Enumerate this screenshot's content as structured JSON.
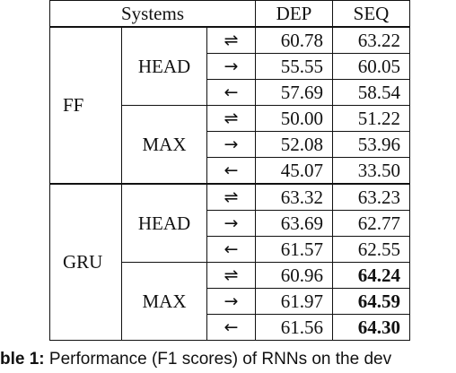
{
  "table": {
    "headers": {
      "systems": "Systems",
      "dep": "DEP",
      "seq": "SEQ"
    },
    "groups": [
      {
        "model": "FF",
        "subgroups": [
          {
            "pooling": "HEAD",
            "rows": [
              {
                "direction": "⇌",
                "dep": "60.78",
                "seq": "63.22"
              },
              {
                "direction": "→",
                "dep": "55.55",
                "seq": "60.05"
              },
              {
                "direction": "←",
                "dep": "57.69",
                "seq": "58.54"
              }
            ]
          },
          {
            "pooling": "MAX",
            "rows": [
              {
                "direction": "⇌",
                "dep": "50.00",
                "seq": "51.22"
              },
              {
                "direction": "→",
                "dep": "52.08",
                "seq": "53.96"
              },
              {
                "direction": "←",
                "dep": "45.07",
                "seq": "33.50"
              }
            ]
          }
        ]
      },
      {
        "model": "GRU",
        "subgroups": [
          {
            "pooling": "HEAD",
            "rows": [
              {
                "direction": "⇌",
                "dep": "63.32",
                "seq": "63.23"
              },
              {
                "direction": "→",
                "dep": "63.69",
                "seq": "62.77"
              },
              {
                "direction": "←",
                "dep": "61.57",
                "seq": "62.55"
              }
            ]
          },
          {
            "pooling": "MAX",
            "rows": [
              {
                "direction": "⇌",
                "dep": "60.96",
                "seq": "64.24",
                "seq_bold": true
              },
              {
                "direction": "→",
                "dep": "61.97",
                "seq": "64.59",
                "seq_bold": true
              },
              {
                "direction": "←",
                "dep": "61.56",
                "seq": "64.30",
                "seq_bold": true
              }
            ]
          }
        ]
      }
    ]
  },
  "caption": {
    "label": "ble 1:",
    "text": "Performance (F1 scores) of RNNs on the dev"
  }
}
